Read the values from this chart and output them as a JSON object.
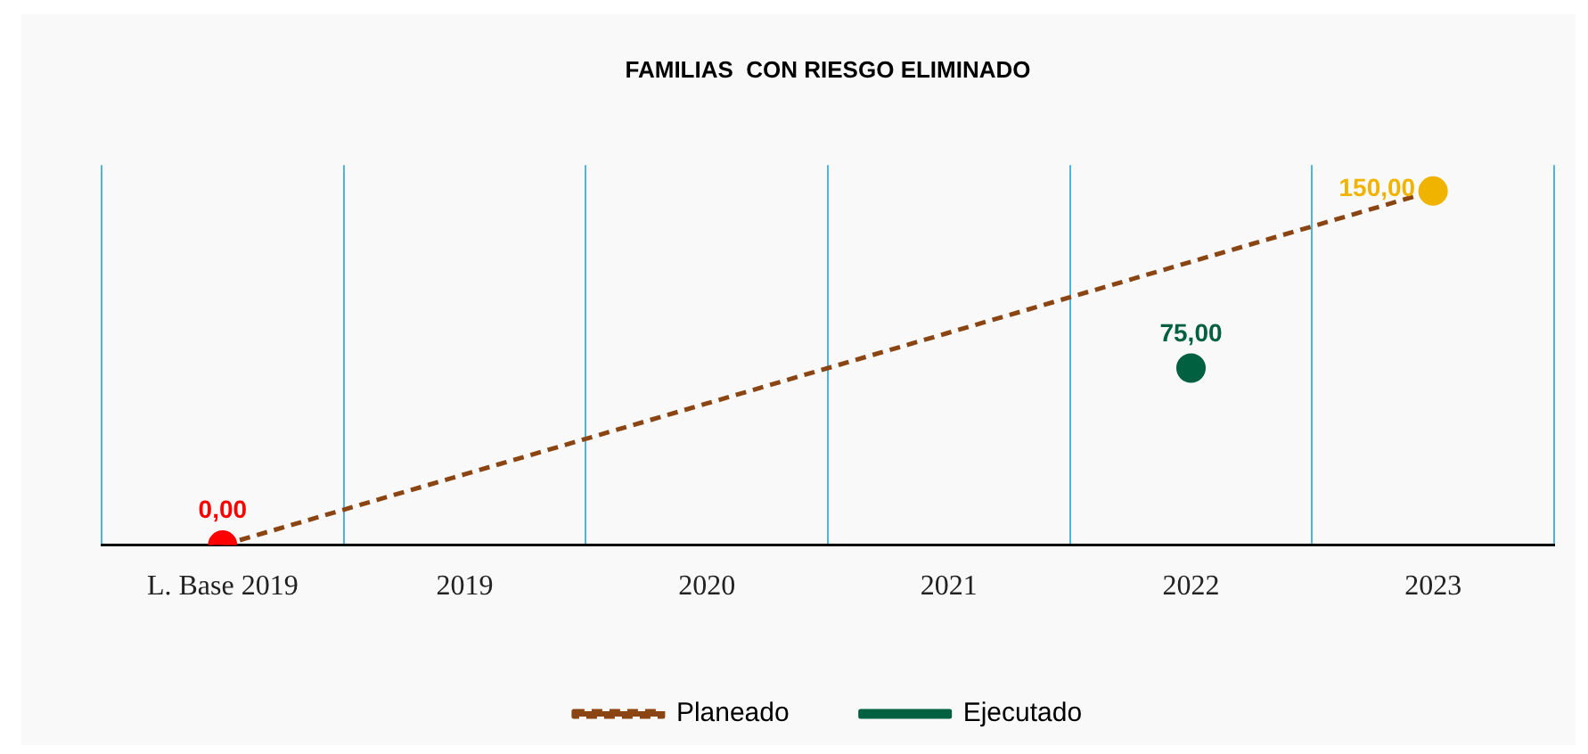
{
  "chart_data": {
    "type": "line",
    "title": "FAMILIAS  CON RIESGO ELIMINADO",
    "categories": [
      "L. Base 2019",
      "2019",
      "2020",
      "2021",
      "2022",
      "2023"
    ],
    "series": [
      {
        "name": "Planeado",
        "color": "#8b4513",
        "line_style": "dashed",
        "values": [
          0,
          30,
          60,
          90,
          120,
          150
        ],
        "colors": [
          "#ff0000",
          null,
          null,
          null,
          null,
          "#f0b400"
        ],
        "value_labels": [
          "0,00",
          null,
          null,
          null,
          null,
          "150,00"
        ]
      },
      {
        "name": "Ejecutado",
        "color": "#006040",
        "line_style": "solid",
        "marker": "circle",
        "values": [
          null,
          null,
          null,
          null,
          75,
          null
        ],
        "value_labels": [
          null,
          null,
          null,
          null,
          "75,00",
          null
        ]
      }
    ],
    "ylim": [
      0,
      161
    ],
    "grid": "x",
    "legend": "bottom",
    "tick_labels": "x"
  }
}
